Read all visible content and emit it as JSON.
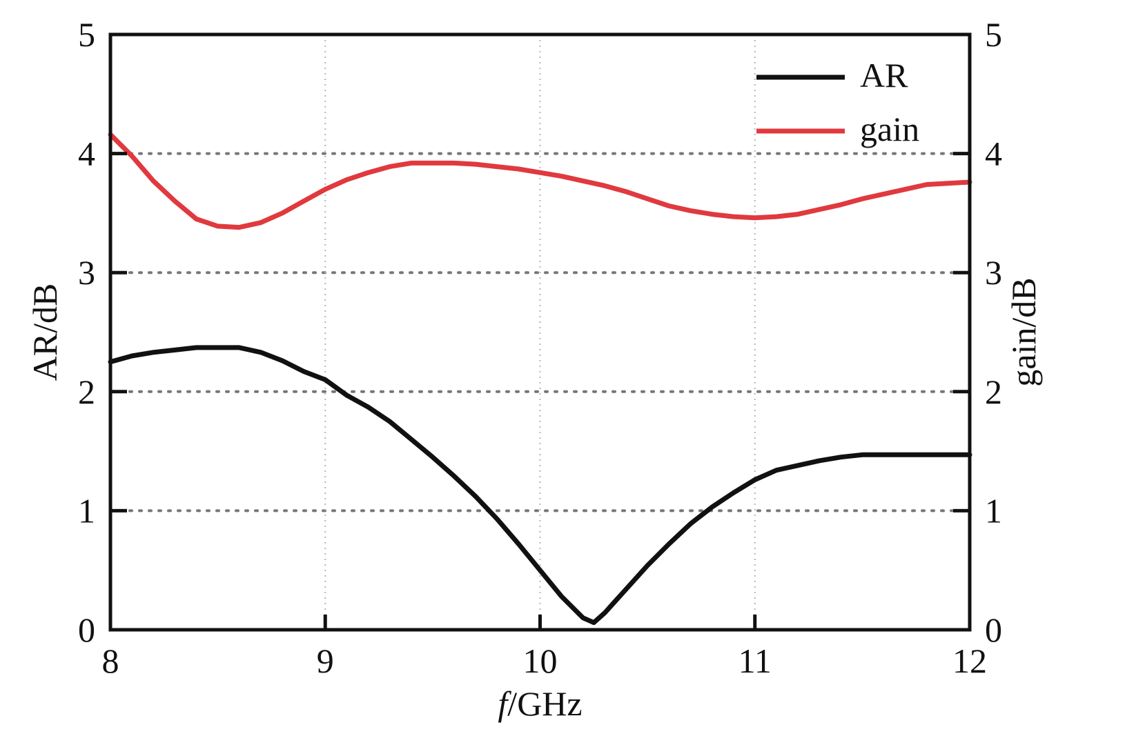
{
  "chart_data": {
    "type": "line",
    "xlabel_italic": "f",
    "xlabel_rest": "/GHz",
    "ylabel_left": "AR/dB",
    "ylabel_right": "gain/dB",
    "xlim": [
      8,
      12
    ],
    "ylim_left": [
      0,
      5
    ],
    "ylim_right": [
      0,
      5
    ],
    "x_ticks": [
      "8",
      "9",
      "10",
      "11",
      "12"
    ],
    "y_ticks": [
      "0",
      "1",
      "2",
      "3",
      "4",
      "5"
    ],
    "grid": "dotted",
    "legend_position": "top-right",
    "series": [
      {
        "name": "AR",
        "color": "#111111",
        "axis": "left",
        "x": [
          8.0,
          8.1,
          8.2,
          8.3,
          8.4,
          8.5,
          8.6,
          8.7,
          8.8,
          8.9,
          9.0,
          9.1,
          9.2,
          9.3,
          9.4,
          9.5,
          9.6,
          9.7,
          9.8,
          9.9,
          10.0,
          10.1,
          10.2,
          10.25,
          10.3,
          10.4,
          10.5,
          10.6,
          10.7,
          10.8,
          10.9,
          11.0,
          11.1,
          11.2,
          11.3,
          11.4,
          11.5,
          11.6,
          11.7,
          11.8,
          11.9,
          12.0
        ],
        "y": [
          2.25,
          2.3,
          2.33,
          2.35,
          2.37,
          2.37,
          2.37,
          2.33,
          2.26,
          2.17,
          2.1,
          1.97,
          1.87,
          1.75,
          1.6,
          1.45,
          1.29,
          1.12,
          0.93,
          0.72,
          0.5,
          0.28,
          0.1,
          0.06,
          0.14,
          0.34,
          0.54,
          0.72,
          0.89,
          1.03,
          1.15,
          1.26,
          1.34,
          1.38,
          1.42,
          1.45,
          1.47,
          1.47,
          1.47,
          1.47,
          1.47,
          1.47
        ]
      },
      {
        "name": "gain",
        "color": "#e0393e",
        "axis": "right",
        "x": [
          8.0,
          8.1,
          8.2,
          8.3,
          8.4,
          8.5,
          8.6,
          8.7,
          8.8,
          8.9,
          9.0,
          9.1,
          9.2,
          9.3,
          9.4,
          9.5,
          9.6,
          9.7,
          9.8,
          9.9,
          10.0,
          10.1,
          10.2,
          10.3,
          10.4,
          10.5,
          10.6,
          10.7,
          10.8,
          10.9,
          11.0,
          11.1,
          11.2,
          11.3,
          11.4,
          11.5,
          11.6,
          11.7,
          11.8,
          11.9,
          12.0
        ],
        "y": [
          4.16,
          3.98,
          3.77,
          3.6,
          3.45,
          3.39,
          3.38,
          3.42,
          3.5,
          3.6,
          3.7,
          3.78,
          3.84,
          3.89,
          3.92,
          3.92,
          3.92,
          3.91,
          3.89,
          3.87,
          3.84,
          3.81,
          3.77,
          3.73,
          3.68,
          3.62,
          3.56,
          3.52,
          3.49,
          3.47,
          3.46,
          3.47,
          3.49,
          3.53,
          3.57,
          3.62,
          3.66,
          3.7,
          3.74,
          3.75,
          3.76
        ]
      }
    ]
  }
}
